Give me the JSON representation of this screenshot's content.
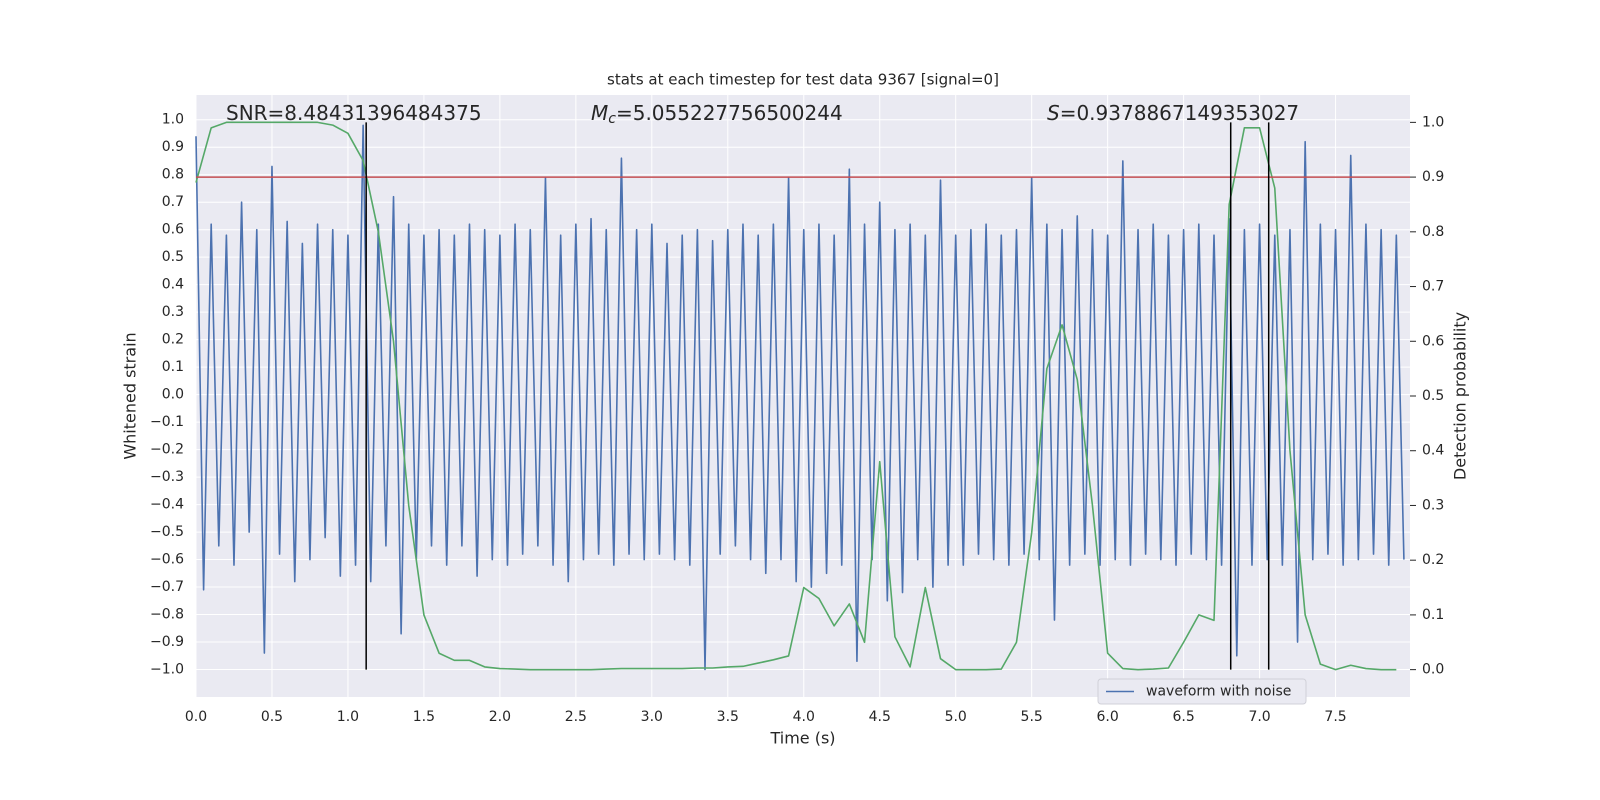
{
  "chart_data": {
    "type": "line",
    "title": "stats at each timestep for test data 9367 [signal=0]",
    "xlabel": "Time (s)",
    "ylabel": "Whitened strain",
    "y2label": "Detection probability",
    "annotations": [
      {
        "parts": [
          "SNR=8.48431396484375"
        ]
      },
      {
        "parts": [
          "M",
          "c",
          "=5.055227756500244"
        ]
      },
      {
        "parts": [
          "S",
          "=0.9378867149353027"
        ]
      }
    ],
    "xlim": [
      0,
      7.99
    ],
    "ylim": [
      -1.1,
      1.09
    ],
    "y2lim": [
      -0.05,
      1.05
    ],
    "xticks": [
      {
        "value": 0,
        "label": "0.0"
      },
      0.5,
      {
        "value": 1,
        "label": "1.0"
      },
      1.5,
      {
        "value": 2,
        "label": "2.0"
      },
      2.5,
      {
        "value": 3,
        "label": "3.0"
      },
      3.5,
      {
        "value": 4,
        "label": "4.0"
      },
      4.5,
      {
        "value": 5,
        "label": "5.0"
      },
      5.5,
      {
        "value": 6,
        "label": "6.0"
      },
      6.5,
      {
        "value": 7,
        "label": "7.0"
      },
      7.5
    ],
    "yticks": [
      {
        "value": -1,
        "label": "−1.0"
      },
      {
        "value": -0.9,
        "label": "−0.9"
      },
      {
        "value": -0.8,
        "label": "−0.8"
      },
      {
        "value": -0.7,
        "label": "−0.7"
      },
      {
        "value": -0.6,
        "label": "−0.6"
      },
      {
        "value": -0.5,
        "label": "−0.5"
      },
      {
        "value": -0.4,
        "label": "−0.4"
      },
      {
        "value": -0.3,
        "label": "−0.3"
      },
      {
        "value": -0.2,
        "label": "−0.2"
      },
      {
        "value": -0.1,
        "label": "−0.1"
      },
      {
        "value": 0,
        "label": "0.0"
      },
      0.1,
      0.2,
      0.3,
      0.4,
      0.5,
      0.6,
      0.7,
      0.8,
      0.9,
      {
        "value": 1,
        "label": "1.0"
      }
    ],
    "y2ticks": [
      {
        "value": 0,
        "label": "0.0"
      },
      0.1,
      0.2,
      0.3,
      0.4,
      0.5,
      0.6,
      0.7,
      0.8,
      0.9,
      {
        "value": 1,
        "label": "1.0"
      }
    ],
    "grid": true,
    "legend": "lower right",
    "series": [
      {
        "name": "waveform with noise",
        "color": "#4c72b0",
        "x": [
          0,
          0.05,
          0.1,
          0.15,
          0.2,
          0.25,
          0.3,
          0.35,
          0.4,
          0.45,
          0.5,
          0.55,
          0.6,
          0.65,
          0.7,
          0.75,
          0.8,
          0.85,
          0.9,
          0.95,
          1,
          1.05,
          1.1,
          1.15,
          1.2,
          1.25,
          1.3,
          1.35,
          1.4,
          1.45,
          1.5,
          1.55,
          1.6,
          1.65,
          1.7,
          1.75,
          1.8,
          1.85,
          1.9,
          1.95,
          2,
          2.05,
          2.1,
          2.15,
          2.2,
          2.25,
          2.3,
          2.35,
          2.4,
          2.45,
          2.5,
          2.55,
          2.6,
          2.65,
          2.7,
          2.75,
          2.8,
          2.85,
          2.9,
          2.95,
          3,
          3.05,
          3.1,
          3.15,
          3.2,
          3.25,
          3.3,
          3.35,
          3.4,
          3.45,
          3.5,
          3.55,
          3.6,
          3.65,
          3.7,
          3.75,
          3.8,
          3.85,
          3.9,
          3.95,
          4,
          4.05,
          4.1,
          4.15,
          4.2,
          4.25,
          4.3,
          4.35,
          4.4,
          4.45,
          4.5,
          4.55,
          4.6,
          4.65,
          4.7,
          4.75,
          4.8,
          4.85,
          4.9,
          4.95,
          5,
          5.05,
          5.1,
          5.15,
          5.2,
          5.25,
          5.3,
          5.35,
          5.4,
          5.45,
          5.5,
          5.55,
          5.6,
          5.65,
          5.7,
          5.75,
          5.8,
          5.85,
          5.9,
          5.95,
          6,
          6.05,
          6.1,
          6.15,
          6.2,
          6.25,
          6.3,
          6.35,
          6.4,
          6.45,
          6.5,
          6.55,
          6.6,
          6.65,
          6.7,
          6.75,
          6.8,
          6.85,
          6.9,
          6.95,
          7,
          7.05,
          7.1,
          7.15,
          7.2,
          7.25,
          7.3,
          7.35,
          7.4,
          7.45,
          7.5,
          7.55,
          7.6,
          7.65,
          7.7,
          7.75,
          7.8,
          7.85,
          7.9,
          7.95
        ],
        "values": [
          0.94,
          -0.71,
          0.62,
          -0.55,
          0.58,
          -0.62,
          0.7,
          -0.5,
          0.6,
          -0.94,
          0.83,
          -0.58,
          0.63,
          -0.68,
          0.55,
          -0.6,
          0.62,
          -0.52,
          0.6,
          -0.66,
          0.58,
          -0.62,
          0.98,
          -0.68,
          0.62,
          -0.55,
          0.72,
          -0.87,
          0.62,
          -0.6,
          0.58,
          -0.55,
          0.6,
          -0.62,
          0.58,
          -0.55,
          0.62,
          -0.66,
          0.6,
          -0.6,
          0.58,
          -0.62,
          0.62,
          -0.58,
          0.6,
          -0.55,
          0.79,
          -0.62,
          0.58,
          -0.68,
          0.62,
          -0.6,
          0.64,
          -0.58,
          0.6,
          -0.62,
          0.86,
          -0.58,
          0.6,
          -0.6,
          0.62,
          -0.58,
          0.55,
          -0.6,
          0.58,
          -0.62,
          0.6,
          -1.0,
          0.56,
          -0.58,
          0.6,
          -0.55,
          0.62,
          -0.6,
          0.58,
          -0.65,
          0.62,
          -0.6,
          0.79,
          -0.68,
          0.6,
          -0.7,
          0.62,
          -0.65,
          0.58,
          -0.62,
          0.82,
          -0.97,
          0.62,
          -0.6,
          0.7,
          -0.75,
          0.6,
          -0.72,
          0.62,
          -0.6,
          0.58,
          -0.7,
          0.78,
          -0.62,
          0.58,
          -0.62,
          0.6,
          -0.58,
          0.62,
          -0.6,
          0.58,
          -0.62,
          0.6,
          -0.58,
          0.79,
          -0.6,
          0.62,
          -0.82,
          0.6,
          -0.62,
          0.65,
          -0.58,
          0.6,
          -0.62,
          0.58,
          -0.6,
          0.85,
          -0.62,
          0.6,
          -0.58,
          0.62,
          -0.6,
          0.58,
          -0.62,
          0.6,
          -0.58,
          0.62,
          -0.6,
          0.58,
          -0.62,
          0.64,
          -0.95,
          0.6,
          -0.62,
          0.62,
          -0.6,
          0.58,
          -0.62,
          0.6,
          -0.9,
          0.92,
          -0.6,
          0.62,
          -0.58,
          0.6,
          -0.62,
          0.87,
          -0.6,
          0.62,
          -0.58,
          0.6,
          -0.62,
          0.58,
          -0.6
        ]
      },
      {
        "color": "#55a868",
        "axis": "y2",
        "x": [
          0,
          0.1,
          0.2,
          0.3,
          0.4,
          0.5,
          0.6,
          0.7,
          0.8,
          0.9,
          1,
          1.1,
          1.2,
          1.3,
          1.4,
          1.5,
          1.6,
          1.7,
          1.8,
          1.9,
          2,
          2.1,
          2.2,
          2.3,
          2.4,
          2.5,
          2.6,
          2.7,
          2.8,
          2.9,
          3,
          3.1,
          3.2,
          3.3,
          3.4,
          3.5,
          3.6,
          3.7,
          3.8,
          3.9,
          4,
          4.1,
          4.2,
          4.3,
          4.4,
          4.5,
          4.6,
          4.7,
          4.8,
          4.9,
          5,
          5.1,
          5.2,
          5.3,
          5.4,
          5.5,
          5.6,
          5.7,
          5.8,
          5.9,
          6,
          6.1,
          6.2,
          6.3,
          6.4,
          6.5,
          6.6,
          6.7,
          6.8,
          6.9,
          7,
          7.1,
          7.2,
          7.3,
          7.4,
          7.5,
          7.6,
          7.7,
          7.8,
          7.9
        ],
        "values": [
          0.89,
          0.99,
          1,
          1,
          1,
          1,
          1,
          1,
          1,
          0.995,
          0.98,
          0.93,
          0.8,
          0.6,
          0.3,
          0.1,
          0.03,
          0.017,
          0.017,
          0.005,
          0.002,
          0.001,
          0,
          0,
          0,
          0,
          0,
          0.001,
          0.002,
          0.002,
          0.002,
          0.002,
          0.002,
          0.003,
          0.003,
          0.005,
          0.006,
          0.012,
          0.018,
          0.025,
          0.15,
          0.13,
          0.08,
          0.12,
          0.05,
          0.38,
          0.06,
          0.005,
          0.15,
          0.02,
          0,
          0,
          0,
          0.001,
          0.05,
          0.25,
          0.55,
          0.63,
          0.53,
          0.3,
          0.03,
          0.002,
          0,
          0.001,
          0.003,
          0.05,
          0.1,
          0.09,
          0.85,
          0.99,
          0.99,
          0.88,
          0.4,
          0.1,
          0.01,
          0,
          0.008,
          0.002,
          0,
          0
        ]
      }
    ],
    "hline": {
      "value": 0.9,
      "axis": "y2",
      "color": "#c44e52"
    },
    "vlines": {
      "x": [
        1.12,
        6.81,
        7.06
      ],
      "from": 0,
      "to": 1,
      "axis": "y2",
      "color": "#000000"
    }
  }
}
